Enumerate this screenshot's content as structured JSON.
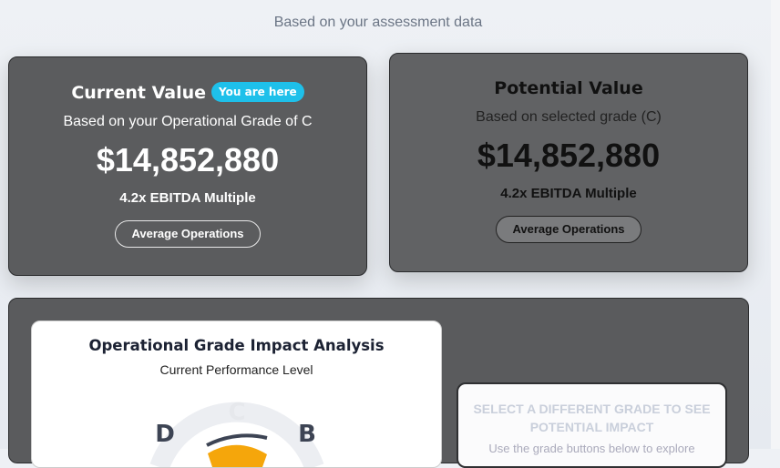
{
  "header": {
    "subtitle": "Based on your assessment data"
  },
  "current_card": {
    "title": "Current Value",
    "badge": "You are here",
    "description": "Based on your Operational Grade of C",
    "value": "$14,852,880",
    "multiple": "4.2x EBITDA Multiple",
    "button": "Average Operations"
  },
  "potential_card": {
    "title": "Potential Value",
    "description": "Based on selected grade (C)",
    "value": "$14,852,880",
    "multiple": "4.2x EBITDA Multiple",
    "button": "Average Operations"
  },
  "analysis": {
    "title": "Operational Grade Impact Analysis",
    "subtitle": "Current Performance Level",
    "gauge_labels": [
      "D",
      "C",
      "B"
    ]
  },
  "select_card": {
    "title": "SELECT A DIFFERENT GRADE TO SEE POTENTIAL IMPACT",
    "text": "Use the grade buttons below to explore"
  }
}
